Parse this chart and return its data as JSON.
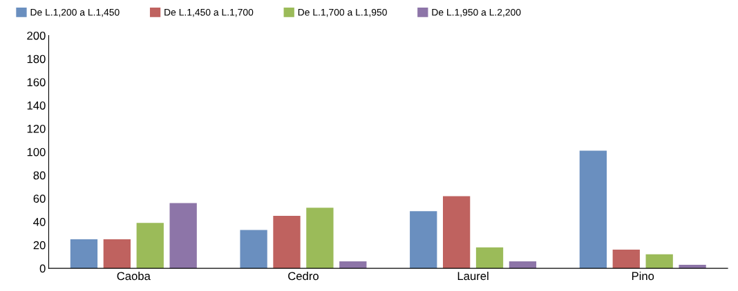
{
  "chart_data": {
    "type": "bar",
    "categories": [
      "Caoba",
      "Cedro",
      "Laurel",
      "Pino"
    ],
    "series": [
      {
        "name": "De L.1,200 a L.1,450",
        "color": "#6a8fbf",
        "values": [
          25,
          33,
          49,
          101
        ]
      },
      {
        "name": "De L.1,450 a L.1,700",
        "color": "#bf625f",
        "values": [
          25,
          45,
          62,
          16
        ]
      },
      {
        "name": "De L.1,700 a L.1,950",
        "color": "#9bbb59",
        "values": [
          39,
          52,
          18,
          12
        ]
      },
      {
        "name": "De L.1,950 a L.2,200",
        "color": "#8d75a8",
        "values": [
          56,
          6,
          6,
          3
        ]
      }
    ],
    "ylim": [
      0,
      200
    ],
    "yticks": [
      0,
      20,
      40,
      60,
      80,
      100,
      120,
      140,
      160,
      180,
      200
    ],
    "grid": false,
    "legend": "top"
  }
}
